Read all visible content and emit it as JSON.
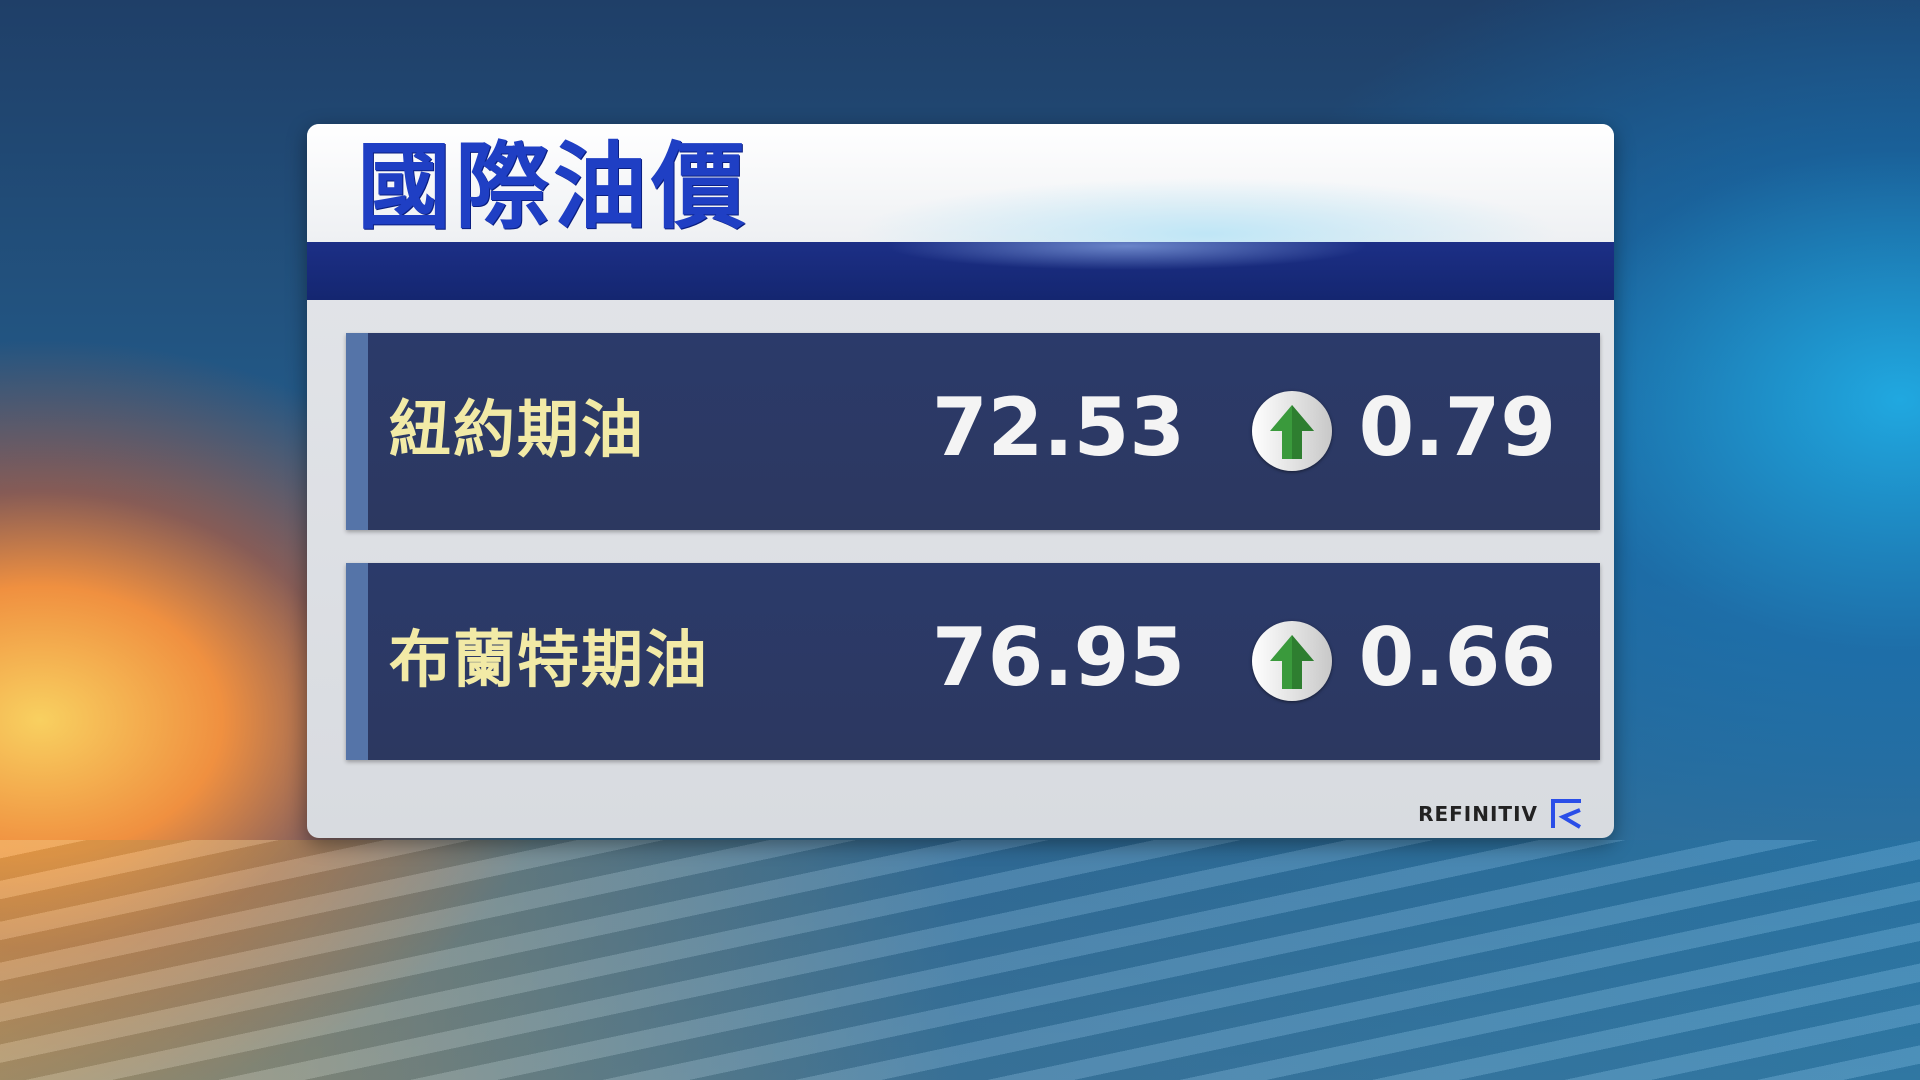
{
  "title": "國際油價",
  "rows": [
    {
      "label": "紐約期油",
      "price": "72.53",
      "direction": "up",
      "change": "0.79"
    },
    {
      "label": "布蘭特期油",
      "price": "76.95",
      "direction": "up",
      "change": "0.66"
    }
  ],
  "source": "REFINITIV",
  "colors": {
    "title": "#1f3fc4",
    "label": "#f2eaa6",
    "up_arrow": "#3a9a3c",
    "row_bg": "#2b3a6a"
  }
}
